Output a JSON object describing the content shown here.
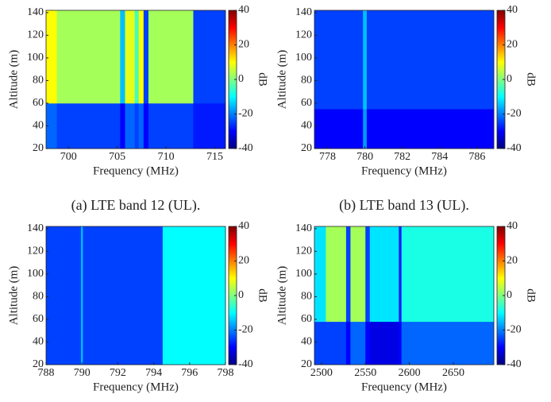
{
  "chart_data": [
    {
      "type": "heatmap",
      "caption": "(a) LTE band 12 (UL).",
      "xlabel": "Frequency (MHz)",
      "ylabel": "Altitude (m)",
      "clabel": "dB",
      "xlim": [
        697.7,
        716.1
      ],
      "xticks": [
        700,
        705,
        710,
        715
      ],
      "ylim": [
        20,
        142
      ],
      "yticks": [
        20,
        40,
        60,
        80,
        100,
        120,
        140
      ],
      "clim": [
        -40,
        40
      ],
      "cticks": [
        -40,
        -20,
        0,
        20,
        40
      ],
      "colormap": [
        "#00007f",
        "#0000ff",
        "#007fff",
        "#00ffff",
        "#7fff7f",
        "#ffff00",
        "#ff7f00",
        "#ff0000",
        "#7f0000"
      ],
      "x_edges": [
        697.7,
        698.8,
        705.3,
        705.8,
        706.8,
        707.2,
        707.7,
        708.2,
        712.8,
        716.1
      ],
      "y_edges": [
        20,
        60,
        142
      ],
      "values": [
        [
          -22,
          -25,
          -30,
          -22,
          -25,
          -22,
          -30,
          -25,
          -28
        ],
        [
          10,
          3,
          -15,
          8,
          -5,
          10,
          -25,
          3,
          -25
        ]
      ]
    },
    {
      "type": "heatmap",
      "caption": "(b) LTE band 13 (UL).",
      "xlabel": "Frequency (MHz)",
      "ylabel": "Altitude (m)",
      "clabel": "dB",
      "xlim": [
        777.3,
        786.9
      ],
      "xticks": [
        778,
        780,
        782,
        784,
        786
      ],
      "ylim": [
        20,
        142
      ],
      "yticks": [
        20,
        40,
        60,
        80,
        100,
        120,
        140
      ],
      "clim": [
        -40,
        40
      ],
      "cticks": [
        -40,
        -20,
        0,
        20,
        40
      ],
      "colormap": [
        "#00007f",
        "#0000ff",
        "#007fff",
        "#00ffff",
        "#7fff7f",
        "#ffff00",
        "#ff7f00",
        "#ff0000",
        "#7f0000"
      ],
      "x_edges": [
        777.3,
        779.9,
        780.1,
        786.9
      ],
      "y_edges": [
        20,
        55,
        142
      ],
      "values": [
        [
          -30,
          -18,
          -30
        ],
        [
          -25,
          -15,
          -25
        ]
      ]
    },
    {
      "type": "heatmap",
      "xlabel": "Frequency (MHz)",
      "ylabel": "Altitude (m)",
      "clabel": "dB",
      "xlim": [
        788,
        798
      ],
      "xticks": [
        788,
        790,
        792,
        794,
        796,
        798
      ],
      "ylim": [
        20,
        142
      ],
      "yticks": [
        20,
        40,
        60,
        80,
        100,
        120,
        140
      ],
      "clim": [
        -40,
        40
      ],
      "cticks": [
        -40,
        -20,
        0,
        20,
        40
      ],
      "colormap": [
        "#00007f",
        "#0000ff",
        "#007fff",
        "#00ffff",
        "#7fff7f",
        "#ffff00",
        "#ff7f00",
        "#ff0000",
        "#7f0000"
      ],
      "x_edges": [
        788,
        789.95,
        790.05,
        794.5,
        798
      ],
      "y_edges": [
        20,
        142
      ],
      "values": [
        [
          -25,
          -15,
          -25,
          -10
        ]
      ]
    },
    {
      "type": "heatmap",
      "xlabel": "Frequency (MHz)",
      "ylabel": "Altitude (m)",
      "clabel": "dB",
      "xlim": [
        2492,
        2696
      ],
      "xticks": [
        2500,
        2550,
        2600,
        2650
      ],
      "ylim": [
        20,
        142
      ],
      "yticks": [
        20,
        40,
        60,
        80,
        100,
        120,
        140
      ],
      "clim": [
        -40,
        40
      ],
      "cticks": [
        -40,
        -20,
        0,
        20,
        40
      ],
      "colormap": [
        "#00007f",
        "#0000ff",
        "#007fff",
        "#00ffff",
        "#7fff7f",
        "#ffff00",
        "#ff7f00",
        "#ff0000",
        "#7f0000"
      ],
      "x_edges": [
        2492,
        2505,
        2528,
        2533,
        2550,
        2555,
        2588,
        2591,
        2696
      ],
      "y_edges": [
        20,
        58,
        142
      ],
      "values": [
        [
          -25,
          -25,
          -30,
          -22,
          -30,
          -32,
          -30,
          -22
        ],
        [
          -12,
          3,
          -25,
          3,
          -25,
          -12,
          -28,
          -8
        ]
      ]
    }
  ]
}
